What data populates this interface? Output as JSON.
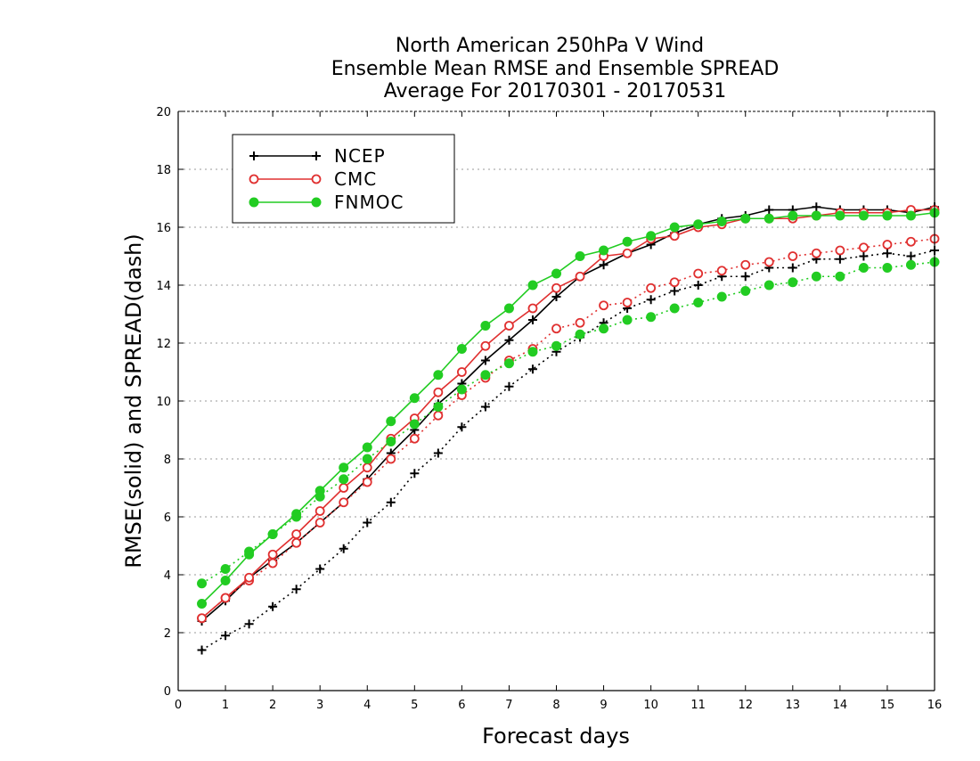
{
  "chart_data": {
    "type": "line",
    "title_lines": [
      "North American 250hPa V Wind",
      "Ensemble Mean RMSE and Ensemble SPREAD",
      "Average For 20170301 - 20170531"
    ],
    "xlabel": "Forecast days",
    "ylabel": "RMSE(solid) and SPREAD(dash)",
    "xlim": [
      0,
      16
    ],
    "ylim": [
      0,
      20
    ],
    "xticks": [
      0,
      1,
      2,
      3,
      4,
      5,
      6,
      7,
      8,
      9,
      10,
      11,
      12,
      13,
      14,
      15,
      16
    ],
    "yticks": [
      0,
      2,
      4,
      6,
      8,
      10,
      12,
      14,
      16,
      18,
      20
    ],
    "grid": "horizontal dotted",
    "legend_position": "top-left",
    "x": [
      0.5,
      1,
      1.5,
      2,
      2.5,
      3,
      3.5,
      4,
      4.5,
      5,
      5.5,
      6,
      6.5,
      7,
      7.5,
      8,
      8.5,
      9,
      9.5,
      10,
      10.5,
      11,
      11.5,
      12,
      12.5,
      13,
      13.5,
      14,
      14.5,
      15,
      15.5,
      16
    ],
    "series": [
      {
        "name": "NCEP",
        "color": "#000000",
        "marker": "plus",
        "rmse": [
          2.4,
          3.1,
          3.9,
          4.5,
          5.1,
          5.8,
          6.5,
          7.3,
          8.2,
          9.0,
          9.9,
          10.6,
          11.4,
          12.1,
          12.8,
          13.6,
          14.3,
          14.7,
          15.1,
          15.4,
          15.8,
          16.1,
          16.3,
          16.4,
          16.6,
          16.6,
          16.7,
          16.6,
          16.6,
          16.6,
          16.5,
          16.7
        ],
        "spread": [
          1.4,
          1.9,
          2.3,
          2.9,
          3.5,
          4.2,
          4.9,
          5.8,
          6.5,
          7.5,
          8.2,
          9.1,
          9.8,
          10.5,
          11.1,
          11.7,
          12.2,
          12.7,
          13.2,
          13.5,
          13.8,
          14.0,
          14.3,
          14.3,
          14.6,
          14.6,
          14.9,
          14.9,
          15.0,
          15.1,
          15.0,
          15.2
        ]
      },
      {
        "name": "CMC",
        "color": "#e03030",
        "marker": "circle",
        "rmse": [
          2.5,
          3.2,
          3.9,
          4.7,
          5.4,
          6.2,
          7.0,
          7.7,
          8.7,
          9.4,
          10.3,
          11.0,
          11.9,
          12.6,
          13.2,
          13.9,
          14.3,
          15.0,
          15.1,
          15.6,
          15.7,
          16.0,
          16.1,
          16.3,
          16.3,
          16.3,
          16.4,
          16.5,
          16.5,
          16.5,
          16.6,
          16.6
        ],
        "spread": [
          2.5,
          3.2,
          3.8,
          4.4,
          5.1,
          5.8,
          6.5,
          7.2,
          8.0,
          8.7,
          9.5,
          10.2,
          10.8,
          11.4,
          11.8,
          12.5,
          12.7,
          13.3,
          13.4,
          13.9,
          14.1,
          14.4,
          14.5,
          14.7,
          14.8,
          15.0,
          15.1,
          15.2,
          15.3,
          15.4,
          15.5,
          15.6
        ]
      },
      {
        "name": "FNMOC",
        "color": "#22cc22",
        "marker": "filled-circle",
        "rmse": [
          3.0,
          3.8,
          4.7,
          5.4,
          6.1,
          6.9,
          7.7,
          8.4,
          9.3,
          10.1,
          10.9,
          11.8,
          12.6,
          13.2,
          14.0,
          14.4,
          15.0,
          15.2,
          15.5,
          15.7,
          16.0,
          16.1,
          16.2,
          16.3,
          16.3,
          16.4,
          16.4,
          16.4,
          16.4,
          16.4,
          16.4,
          16.5
        ],
        "spread": [
          3.7,
          4.2,
          4.8,
          5.4,
          6.0,
          6.7,
          7.3,
          8.0,
          8.6,
          9.2,
          9.8,
          10.4,
          10.9,
          11.3,
          11.7,
          11.9,
          12.3,
          12.5,
          12.8,
          12.9,
          13.2,
          13.4,
          13.6,
          13.8,
          14.0,
          14.1,
          14.3,
          14.3,
          14.6,
          14.6,
          14.7,
          14.8
        ]
      }
    ]
  }
}
